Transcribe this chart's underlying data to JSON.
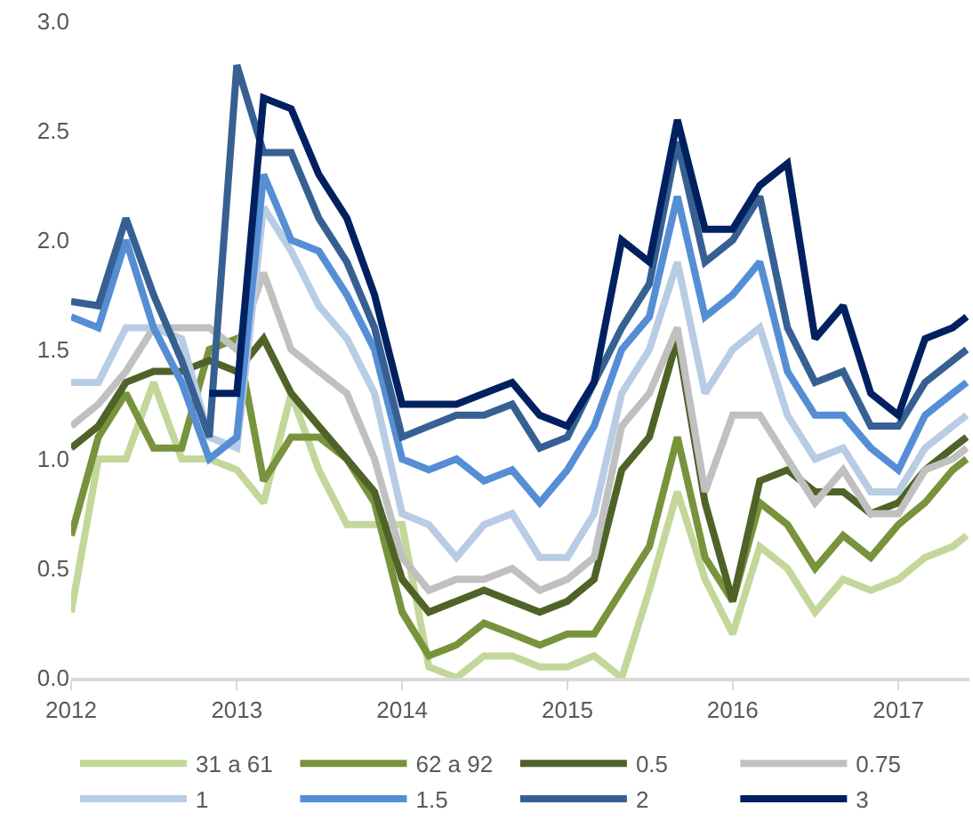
{
  "chart_data": {
    "type": "line",
    "x": [
      "2012-01",
      "2012-03",
      "2012-05",
      "2012-07",
      "2012-09",
      "2012-11",
      "2013-01",
      "2013-03",
      "2013-05",
      "2013-07",
      "2013-09",
      "2013-11",
      "2014-01",
      "2014-03",
      "2014-05",
      "2014-07",
      "2014-09",
      "2014-11",
      "2015-01",
      "2015-03",
      "2015-05",
      "2015-07",
      "2015-09",
      "2015-11",
      "2016-01",
      "2016-03",
      "2016-05",
      "2016-07",
      "2016-09",
      "2016-11",
      "2017-01",
      "2017-03",
      "2017-05",
      "2017-06"
    ],
    "series": [
      {
        "name": "31 a 61",
        "color": "#c4d79b",
        "values": [
          0.3,
          1.0,
          1.0,
          1.35,
          1.0,
          1.0,
          0.95,
          0.8,
          1.3,
          0.95,
          0.7,
          0.7,
          0.7,
          0.05,
          0.0,
          0.1,
          0.1,
          0.05,
          0.05,
          0.1,
          0.0,
          0.4,
          0.85,
          0.45,
          0.2,
          0.6,
          0.5,
          0.3,
          0.45,
          0.4,
          0.45,
          0.55,
          0.6,
          0.65
        ]
      },
      {
        "name": "62 a 92",
        "color": "#77933c",
        "values": [
          0.65,
          1.1,
          1.3,
          1.05,
          1.05,
          1.5,
          1.55,
          0.9,
          1.1,
          1.1,
          1.0,
          0.8,
          0.3,
          0.1,
          0.15,
          0.25,
          0.2,
          0.15,
          0.2,
          0.2,
          0.4,
          0.6,
          1.1,
          0.55,
          0.35,
          0.8,
          0.7,
          0.5,
          0.65,
          0.55,
          0.7,
          0.8,
          0.95,
          1.0
        ]
      },
      {
        "name": "0.5",
        "color": "#4f6228",
        "values": [
          1.05,
          1.15,
          1.35,
          1.4,
          1.4,
          1.45,
          1.4,
          1.55,
          1.3,
          1.15,
          1.0,
          0.85,
          0.45,
          0.3,
          0.35,
          0.4,
          0.35,
          0.3,
          0.35,
          0.45,
          0.95,
          1.1,
          1.55,
          0.8,
          0.35,
          0.9,
          0.95,
          0.85,
          0.85,
          0.75,
          0.8,
          0.95,
          1.05,
          1.1
        ]
      },
      {
        "name": "0.75",
        "color": "#c0c0c0",
        "values": [
          1.15,
          1.25,
          1.4,
          1.6,
          1.6,
          1.6,
          1.5,
          1.85,
          1.5,
          1.4,
          1.3,
          1.0,
          0.55,
          0.4,
          0.45,
          0.45,
          0.5,
          0.4,
          0.45,
          0.55,
          1.15,
          1.3,
          1.6,
          0.85,
          1.2,
          1.2,
          1.0,
          0.8,
          0.95,
          0.75,
          0.75,
          0.95,
          1.0,
          1.05
        ]
      },
      {
        "name": "1",
        "color": "#b8cce4",
        "values": [
          1.35,
          1.35,
          1.6,
          1.6,
          1.55,
          1.1,
          1.05,
          2.15,
          1.95,
          1.7,
          1.55,
          1.3,
          0.75,
          0.7,
          0.55,
          0.7,
          0.75,
          0.55,
          0.55,
          0.75,
          1.3,
          1.5,
          1.9,
          1.3,
          1.5,
          1.6,
          1.2,
          1.0,
          1.05,
          0.85,
          0.85,
          1.05,
          1.15,
          1.2
        ]
      },
      {
        "name": "1.5",
        "color": "#558ed5",
        "values": [
          1.65,
          1.6,
          2.0,
          1.6,
          1.35,
          1.0,
          1.1,
          2.3,
          2.0,
          1.95,
          1.75,
          1.5,
          1.0,
          0.95,
          1.0,
          0.9,
          0.95,
          0.8,
          0.95,
          1.15,
          1.5,
          1.65,
          2.2,
          1.65,
          1.75,
          1.9,
          1.4,
          1.2,
          1.2,
          1.05,
          0.95,
          1.2,
          1.3,
          1.35
        ]
      },
      {
        "name": "2",
        "color": "#376092",
        "values": [
          1.72,
          1.7,
          2.1,
          1.75,
          1.45,
          1.1,
          2.8,
          2.4,
          2.4,
          2.1,
          1.9,
          1.6,
          1.1,
          1.15,
          1.2,
          1.2,
          1.25,
          1.05,
          1.1,
          1.35,
          1.6,
          1.8,
          2.45,
          1.9,
          2.0,
          2.2,
          1.6,
          1.35,
          1.4,
          1.15,
          1.15,
          1.35,
          1.45,
          1.5
        ]
      },
      {
        "name": "3",
        "color": "#002060",
        "values": [
          null,
          null,
          null,
          null,
          null,
          1.3,
          1.3,
          2.65,
          2.6,
          2.3,
          2.1,
          1.75,
          1.25,
          1.25,
          1.25,
          1.3,
          1.35,
          1.2,
          1.15,
          1.35,
          2.0,
          1.9,
          2.55,
          2.05,
          2.05,
          2.25,
          2.35,
          1.55,
          1.7,
          1.3,
          1.2,
          1.55,
          1.6,
          1.65
        ]
      }
    ],
    "xlim": [
      "2012-01-01",
      "2017-06-07"
    ],
    "xticks": [
      {
        "value": "2012-01-01",
        "label": "2012"
      },
      {
        "value": "2013-01-01",
        "label": "2013"
      },
      {
        "value": "2014-01-01",
        "label": "2014"
      },
      {
        "value": "2015-01-01",
        "label": "2015"
      },
      {
        "value": "2016-01-01",
        "label": "2016"
      },
      {
        "value": "2017-01-01",
        "label": "2017"
      }
    ],
    "ylim": [
      0,
      3.0
    ],
    "yticks": [
      {
        "value": 0,
        "label": "0.0"
      },
      {
        "value": 0.5,
        "label": "0.5"
      },
      {
        "value": 1.0,
        "label": "1.0"
      },
      {
        "value": 1.5,
        "label": "1.5"
      },
      {
        "value": 2.0,
        "label": "2.0"
      },
      {
        "value": 2.5,
        "label": "2.5"
      },
      {
        "value": 3.0,
        "label": "3.0"
      }
    ],
    "legend": "bottom",
    "marker": "none",
    "line_style": "solid"
  }
}
